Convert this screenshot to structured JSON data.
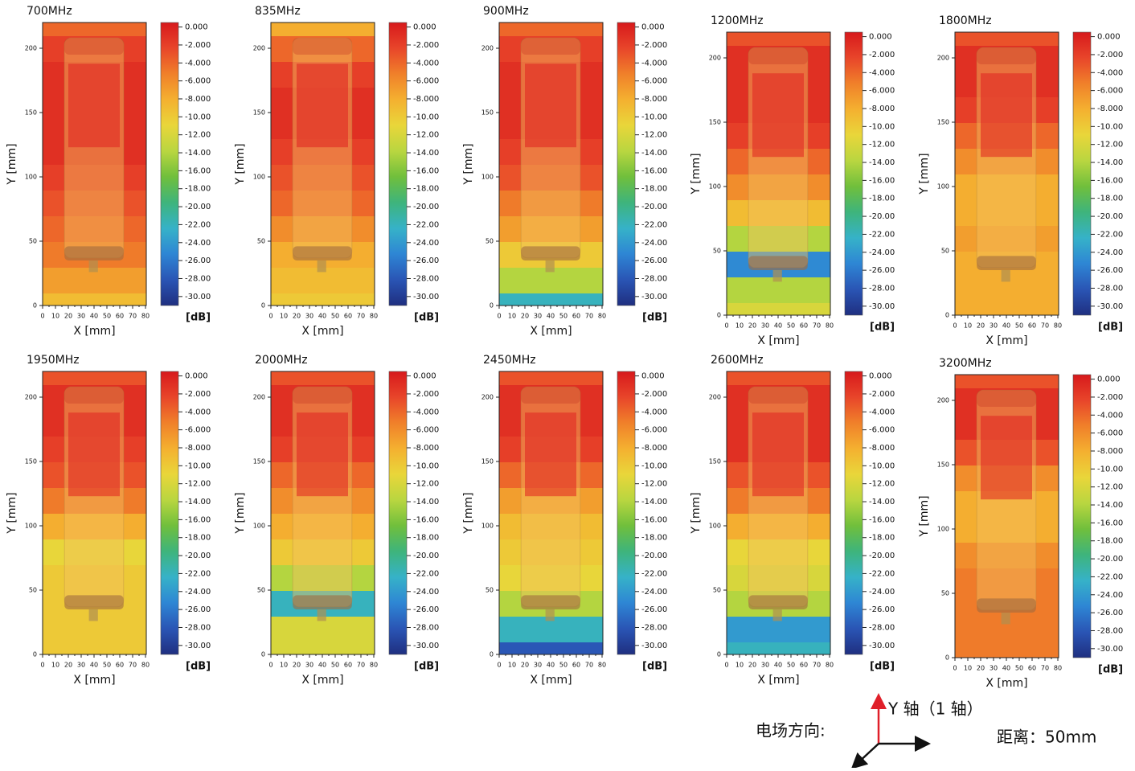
{
  "shared": {
    "xlabel": "X [mm]",
    "ylabel": "Y [mm]",
    "xlim": [
      0,
      80
    ],
    "ylim": [
      0,
      220
    ],
    "xticks": [
      0,
      10,
      20,
      30,
      40,
      50,
      60,
      70,
      80
    ],
    "yticks": [
      0,
      50,
      100,
      150,
      200
    ],
    "profile_y": [
      0,
      20,
      40,
      60,
      80,
      100,
      120,
      140,
      160,
      180,
      200,
      220
    ],
    "colorbar": {
      "label": "[dB]",
      "lim": [
        -31,
        0.5
      ],
      "ticks": [
        {
          "value": 0,
          "label": "0.000"
        },
        {
          "value": -2,
          "label": "-2.000"
        },
        {
          "value": -4,
          "label": "-4.000"
        },
        {
          "value": -6,
          "label": "-6.000"
        },
        {
          "value": -8,
          "label": "-8.000"
        },
        {
          "value": -10,
          "label": "-10.00"
        },
        {
          "value": -12,
          "label": "-12.00"
        },
        {
          "value": -14,
          "label": "-14.00"
        },
        {
          "value": -16,
          "label": "-16.00"
        },
        {
          "value": -18,
          "label": "-18.00"
        },
        {
          "value": -20,
          "label": "-20.00"
        },
        {
          "value": -22,
          "label": "-22.00"
        },
        {
          "value": -24,
          "label": "-24.00"
        },
        {
          "value": -26,
          "label": "-26.00"
        },
        {
          "value": -28,
          "label": "-28.00"
        },
        {
          "value": -30,
          "label": "-30.00"
        }
      ],
      "colormap": [
        "#d7191c",
        "#e8452a",
        "#f0802a",
        "#f4b030",
        "#e9d63a",
        "#b9d640",
        "#70bf3c",
        "#3eb47c",
        "#36b2c8",
        "#2e86d4",
        "#2a55b5",
        "#1f2f80"
      ]
    }
  },
  "chart_data": [
    {
      "type": "heatmap",
      "title": "700MHz",
      "values": [
        -9,
        -7,
        -5,
        -4,
        -3,
        -2,
        -1,
        -1,
        -1,
        -1,
        -2,
        -4
      ]
    },
    {
      "type": "heatmap",
      "title": "835MHz",
      "values": [
        -10,
        -9,
        -8,
        -6,
        -4,
        -3,
        -2,
        -1,
        -1,
        -2,
        -4,
        -8
      ]
    },
    {
      "type": "heatmap",
      "title": "900MHz",
      "values": [
        -22,
        -14,
        -10,
        -7,
        -5,
        -3,
        -2,
        -1,
        -1,
        -1,
        -2,
        -4
      ]
    },
    {
      "type": "heatmap",
      "title": "1200MHz",
      "values": [
        -12,
        -14,
        -25,
        -14,
        -9,
        -6,
        -4,
        -2,
        -1,
        -1,
        -1,
        -3
      ]
    },
    {
      "type": "heatmap",
      "title": "1800MHz",
      "values": [
        -8,
        -8,
        -8,
        -7,
        -8,
        -8,
        -6,
        -4,
        -2,
        -1,
        -1,
        -3
      ]
    },
    {
      "type": "heatmap",
      "title": "1950MHz",
      "values": [
        -10,
        -10,
        -10,
        -10,
        -11,
        -8,
        -5,
        -3,
        -2,
        -1,
        -1,
        -3
      ]
    },
    {
      "type": "heatmap",
      "title": "2000MHz",
      "values": [
        -12,
        -12,
        -22,
        -14,
        -10,
        -8,
        -6,
        -4,
        -2,
        -1,
        -1,
        -3
      ]
    },
    {
      "type": "heatmap",
      "title": "2450MHz",
      "values": [
        -28,
        -22,
        -14,
        -11,
        -10,
        -9,
        -7,
        -4,
        -2,
        -1,
        -1,
        -3
      ]
    },
    {
      "type": "heatmap",
      "title": "2600MHz",
      "values": [
        -22,
        -24,
        -14,
        -12,
        -11,
        -8,
        -5,
        -3,
        -1,
        -1,
        -1,
        -3
      ]
    },
    {
      "type": "heatmap",
      "title": "3200MHz",
      "values": [
        -5,
        -5,
        -5,
        -5,
        -6,
        -8,
        -8,
        -6,
        -3,
        -1,
        -1,
        -3
      ]
    }
  ],
  "legend": {
    "field_label": "电场方向:",
    "axis_label": "Y 轴（1 轴）",
    "distance": "距离：50mm"
  }
}
